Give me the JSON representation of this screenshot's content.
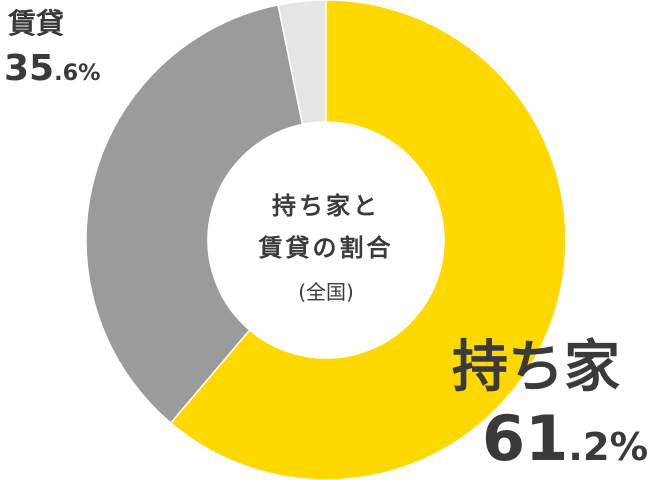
{
  "chart_data": {
    "type": "pie",
    "center_label": {
      "line1": "持ち家と",
      "line2": "賃貸の割合",
      "line3": "(全国)"
    },
    "slices": [
      {
        "label": "持ち家",
        "value": 61.2,
        "int": "61",
        "dec": ".2%",
        "color": "#ffd800"
      },
      {
        "label": "賃貸",
        "value": 35.6,
        "int": "35",
        "dec": ".6%",
        "color": "#9b9b9b"
      },
      {
        "label": "",
        "value": 3.2,
        "color": "#e6e6e6"
      }
    ]
  }
}
